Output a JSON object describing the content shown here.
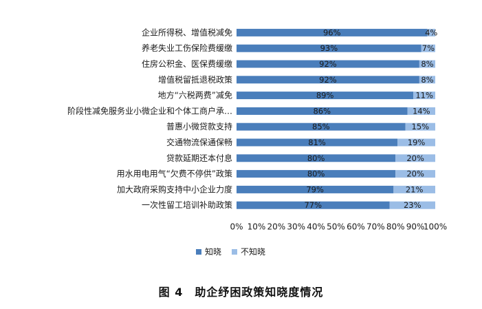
{
  "chart_data": {
    "type": "bar",
    "orientation": "horizontal",
    "stacked": "percent",
    "categories": [
      "企业所得税、增值税减免",
      "养老失业工伤保险费缓缴",
      "住房公积金、医保费缓缴",
      "增值税留抵退税政策",
      "地方“六税两费”减免",
      "阶段性减免服务业小微企业和个体工商户承…",
      "普惠小微贷款支持",
      "交通物流保通保畅",
      "贷款延期还本付息",
      "用水用电用气“欠费不停供”政策",
      "加大政府采购支持中小企业力度",
      "一次性留工培训补助政策"
    ],
    "series": [
      {
        "name": "知晓",
        "color": "#4a7ebb",
        "values": [
          96,
          93,
          92,
          92,
          89,
          86,
          85,
          81,
          80,
          80,
          79,
          77
        ]
      },
      {
        "name": "不知晓",
        "color": "#9bbde6",
        "values": [
          4,
          7,
          8,
          8,
          11,
          14,
          15,
          19,
          20,
          20,
          21,
          23
        ]
      }
    ],
    "data_labels": [
      [
        "96%",
        "93%",
        "92%",
        "92%",
        "89%",
        "86%",
        "85%",
        "81%",
        "80%",
        "80%",
        "79%",
        "77%"
      ],
      [
        "4%",
        "7%",
        "8%",
        "8%",
        "11%",
        "14%",
        "15%",
        "19%",
        "20%",
        "20%",
        "21%",
        "23%"
      ]
    ],
    "x_ticks": [
      "0%",
      "10%",
      "20%",
      "30%",
      "40%",
      "50%",
      "60%",
      "70%",
      "80%",
      "90%",
      "100%"
    ],
    "xlim": [
      0,
      100
    ],
    "grid": false,
    "legend_position": "bottom-left"
  },
  "caption": "图 4　助企纾困政策知晓度情况"
}
